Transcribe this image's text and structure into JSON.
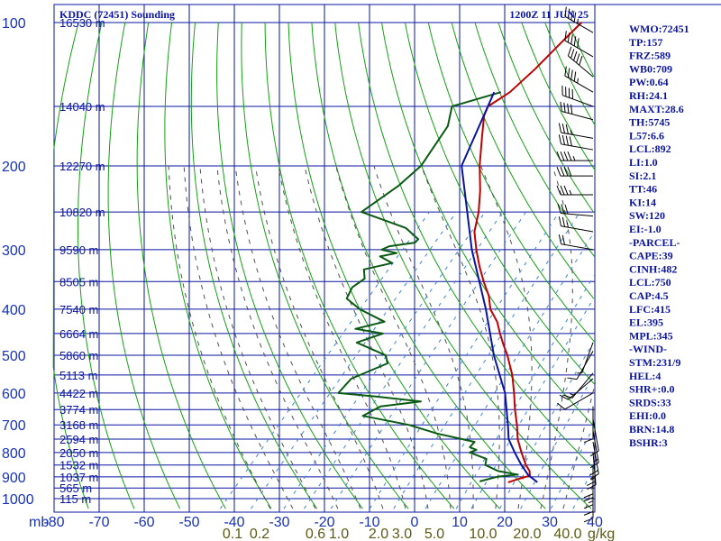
{
  "header": {
    "station": "KDDC (72451) Sounding",
    "time": "1200Z 11 JUN 25"
  },
  "side_indices": [
    "WMO:72451",
    "TP:157",
    "FRZ:589",
    "WB0:709",
    "PW:0.64",
    "RH:24.1",
    "MAXT:28.6",
    "TH:5745",
    "L57:6.6",
    "LCL:892",
    "LI:1.0",
    "SI:2.1",
    "TT:46",
    "KI:14",
    "SW:120",
    "EI:-1.0",
    "-PARCEL-",
    "CAPE:39",
    "CINH:482",
    "LCL:750",
    "CAP:4.5",
    "LFC:415",
    "EL:395",
    "MPL:345",
    "-WIND-",
    "STM:231/9",
    "HEL:4",
    "SHR+:0.0",
    "SRDS:33",
    "EHI:0.0",
    "BRN:14.8",
    "BSHR:3"
  ],
  "chart_data": {
    "type": "line",
    "chart_kind": "skew-T log-P sounding",
    "x_axis": {
      "label": "mb",
      "unit_suffix": "g/kg",
      "temperature_ticks": [
        -80,
        -70,
        -60,
        -50,
        -40,
        -30,
        -20,
        -10,
        0,
        10,
        20,
        30,
        40
      ],
      "temperature_tick_labels": [
        "-80",
        "-70",
        "-60",
        "-50",
        "-40",
        "-30",
        "-20",
        "-10",
        "0",
        "10",
        "20",
        "30",
        "40"
      ],
      "mixing_ratio_ticks": [
        "0.1",
        "0.2",
        "0.6",
        "1.0",
        "2.0",
        "3.0",
        "5.0",
        "10.0",
        "20.0",
        "40.0"
      ]
    },
    "y_axis": {
      "scale": "log",
      "ylim": [
        1000,
        100
      ],
      "pressure_ticks": [
        100,
        200,
        300,
        400,
        500,
        600,
        700,
        800,
        900,
        1000
      ],
      "pressure_tick_labels": [
        "100",
        "200",
        "300",
        "400",
        "500",
        "600",
        "700",
        "800",
        "900",
        "1000"
      ]
    },
    "height_labels": [
      {
        "p": 100,
        "label": "16530 m"
      },
      {
        "p": 150,
        "label": "14040 m"
      },
      {
        "p": 200,
        "label": "12270 m"
      },
      {
        "p": 250,
        "label": "10820 m"
      },
      {
        "p": 300,
        "label": "9590 m"
      },
      {
        "p": 350,
        "label": "8505 m"
      },
      {
        "p": 400,
        "label": "7540 m"
      },
      {
        "p": 450,
        "label": "6664 m"
      },
      {
        "p": 500,
        "label": "5860 m"
      },
      {
        "p": 550,
        "label": "5113 m"
      },
      {
        "p": 600,
        "label": "4422 m"
      },
      {
        "p": 650,
        "label": "3774 m"
      },
      {
        "p": 700,
        "label": "3168 m"
      },
      {
        "p": 750,
        "label": "2594 m"
      },
      {
        "p": 800,
        "label": "2050 m"
      },
      {
        "p": 850,
        "label": "1532 m"
      },
      {
        "p": 900,
        "label": "1037 m"
      },
      {
        "p": 950,
        "label": "565 m"
      },
      {
        "p": 1000,
        "label": "115 m"
      }
    ],
    "series": [
      {
        "key": "temperature",
        "color": "#c00000",
        "points": [
          [
            100,
            -58.0
          ],
          [
            110,
            -58.5
          ],
          [
            125,
            -59.0
          ],
          [
            140,
            -60.0
          ],
          [
            150,
            -62.0
          ],
          [
            157,
            -61.0
          ],
          [
            175,
            -57.0
          ],
          [
            200,
            -52.0
          ],
          [
            225,
            -47.0
          ],
          [
            250,
            -43.0
          ],
          [
            275,
            -40.0
          ],
          [
            300,
            -36.0
          ],
          [
            325,
            -32.0
          ],
          [
            350,
            -28.0
          ],
          [
            375,
            -24.0
          ],
          [
            400,
            -21.0
          ],
          [
            425,
            -17.0
          ],
          [
            450,
            -14.0
          ],
          [
            475,
            -11.0
          ],
          [
            500,
            -8.0
          ],
          [
            550,
            -3.0
          ],
          [
            600,
            1.0
          ],
          [
            650,
            4.5
          ],
          [
            700,
            8.0
          ],
          [
            750,
            11.0
          ],
          [
            800,
            14.5
          ],
          [
            850,
            18.0
          ],
          [
            875,
            20.0
          ],
          [
            895,
            21.0
          ],
          [
            910,
            19.0
          ],
          [
            924,
            17.5
          ]
        ]
      },
      {
        "key": "dewpoint",
        "color": "#0a5a14",
        "points": [
          [
            140,
            -62.0
          ],
          [
            150,
            -70.0
          ],
          [
            165,
            -67.0
          ],
          [
            200,
            -65.0
          ],
          [
            220,
            -66.0
          ],
          [
            250,
            -69.0
          ],
          [
            270,
            -56.0
          ],
          [
            285,
            -51.0
          ],
          [
            290,
            -51.0
          ],
          [
            295,
            -56.0
          ],
          [
            300,
            -57.0
          ],
          [
            305,
            -53.0
          ],
          [
            310,
            -56.0
          ],
          [
            320,
            -52.0
          ],
          [
            330,
            -57.0
          ],
          [
            345,
            -55.0
          ],
          [
            360,
            -56.0
          ],
          [
            380,
            -55.0
          ],
          [
            400,
            -50.0
          ],
          [
            425,
            -42.0
          ],
          [
            440,
            -47.0
          ],
          [
            450,
            -40.0
          ],
          [
            470,
            -44.0
          ],
          [
            500,
            -35.0
          ],
          [
            520,
            -33.0
          ],
          [
            560,
            -38.0
          ],
          [
            600,
            -38.0
          ],
          [
            610,
            -29.0
          ],
          [
            625,
            -18.0
          ],
          [
            640,
            -26.0
          ],
          [
            670,
            -28.0
          ],
          [
            700,
            -16.0
          ],
          [
            730,
            -8.0
          ],
          [
            760,
            2.0
          ],
          [
            780,
            2.0
          ],
          [
            790,
            4.0
          ],
          [
            800,
            3.0
          ],
          [
            825,
            8.0
          ],
          [
            850,
            9.0
          ],
          [
            875,
            13.0
          ],
          [
            890,
            18.0
          ],
          [
            900,
            14.0
          ],
          [
            920,
            11.0
          ]
        ]
      },
      {
        "key": "parcel",
        "color": "#0a14a0",
        "points": [
          [
            140,
            -63.5
          ],
          [
            200,
            -56.0
          ],
          [
            300,
            -37.0
          ],
          [
            400,
            -22.0
          ],
          [
            500,
            -11.0
          ],
          [
            600,
            -1.0
          ],
          [
            700,
            6.0
          ],
          [
            750,
            9.0
          ],
          [
            800,
            13.0
          ],
          [
            850,
            17.0
          ],
          [
            892,
            20.5
          ],
          [
            924,
            24.0
          ]
        ]
      }
    ],
    "wind_barbs": [
      {
        "p": 105,
        "dir": 300,
        "spd": 45
      },
      {
        "p": 118,
        "dir": 300,
        "spd": 50
      },
      {
        "p": 130,
        "dir": 310,
        "spd": 50
      },
      {
        "p": 140,
        "dir": 300,
        "spd": 45
      },
      {
        "p": 150,
        "dir": 290,
        "spd": 40
      },
      {
        "p": 160,
        "dir": 285,
        "spd": 40
      },
      {
        "p": 175,
        "dir": 280,
        "spd": 35
      },
      {
        "p": 185,
        "dir": 280,
        "spd": 40
      },
      {
        "p": 195,
        "dir": 270,
        "spd": 45
      },
      {
        "p": 210,
        "dir": 270,
        "spd": 40
      },
      {
        "p": 230,
        "dir": 270,
        "spd": 35
      },
      {
        "p": 255,
        "dir": 275,
        "spd": 30
      },
      {
        "p": 275,
        "dir": 280,
        "spd": 25
      },
      {
        "p": 300,
        "dir": 280,
        "spd": 20
      },
      {
        "p": 470,
        "dir": 200,
        "spd": 5
      },
      {
        "p": 490,
        "dir": 210,
        "spd": 10
      },
      {
        "p": 545,
        "dir": 220,
        "spd": 15
      },
      {
        "p": 560,
        "dir": 230,
        "spd": 10
      },
      {
        "p": 600,
        "dir": 240,
        "spd": 10
      },
      {
        "p": 640,
        "dir": 180,
        "spd": 10
      },
      {
        "p": 680,
        "dir": 170,
        "spd": 10
      },
      {
        "p": 720,
        "dir": 170,
        "spd": 15
      },
      {
        "p": 760,
        "dir": 170,
        "spd": 20
      },
      {
        "p": 800,
        "dir": 175,
        "spd": 25
      },
      {
        "p": 850,
        "dir": 180,
        "spd": 20
      },
      {
        "p": 880,
        "dir": 180,
        "spd": 15
      },
      {
        "p": 910,
        "dir": 180,
        "spd": 10
      },
      {
        "p": 940,
        "dir": 180,
        "spd": 10
      }
    ],
    "colors": {
      "grid": "#0a14a0",
      "dry_adiabat": "#14a014",
      "moist_adiabat": "#505050",
      "mixing_ratio": "#3c82dc",
      "barb": "#000000"
    }
  }
}
